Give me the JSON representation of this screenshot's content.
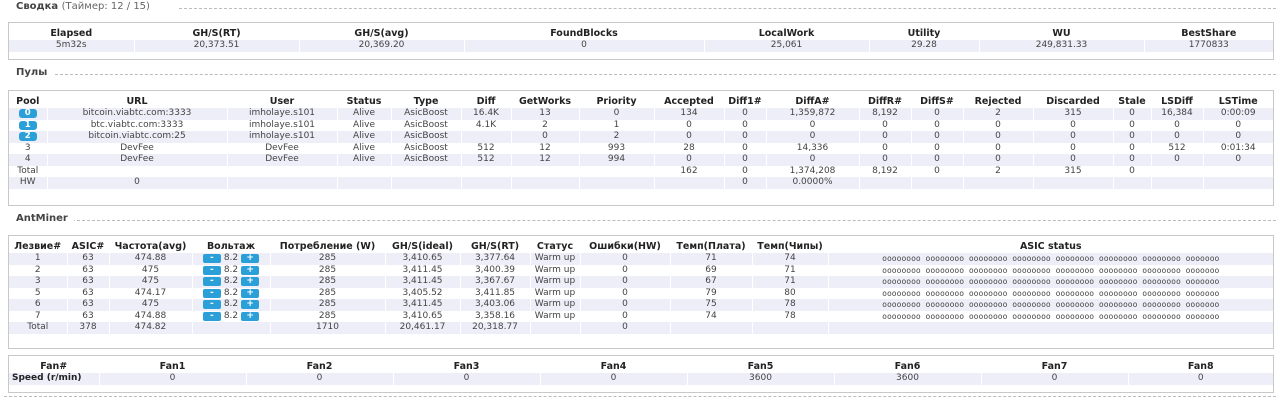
{
  "summary": {
    "title": "Сводка",
    "timer": "(Таймер: 12 / 15)",
    "headers": [
      "Elapsed",
      "GH/S(RT)",
      "GH/S(avg)",
      "FoundBlocks",
      "LocalWork",
      "Utility",
      "WU",
      "BestShare"
    ],
    "row": [
      "5m32s",
      "20,373.51",
      "20,369.20",
      "0",
      "25,061",
      "29.28",
      "249,831.33",
      "1770833"
    ]
  },
  "pools": {
    "title": "Пулы",
    "headers": [
      "Pool",
      "URL",
      "User",
      "Status",
      "Type",
      "Diff",
      "GetWorks",
      "Priority",
      "Accepted",
      "Diff1#",
      "DiffA#",
      "DiffR#",
      "DiffS#",
      "Rejected",
      "Discarded",
      "Stale",
      "LSDiff",
      "LSTime"
    ],
    "rows": [
      {
        "pool": "0",
        "cells": [
          "bitcoin.viabtc.com:3333",
          "imholaye.s101",
          "Alive",
          "AsicBoost",
          "16.4K",
          "13",
          "0",
          "134",
          "0",
          "1,359,872",
          "8,192",
          "0",
          "2",
          "315",
          "0",
          "16,384",
          "0:00:09"
        ]
      },
      {
        "pool": "1",
        "cells": [
          "btc.viabtc.com:3333",
          "imholaye.s101",
          "Alive",
          "AsicBoost",
          "4.1K",
          "2",
          "1",
          "0",
          "0",
          "0",
          "0",
          "0",
          "0",
          "0",
          "0",
          "0",
          "0"
        ]
      },
      {
        "pool": "2",
        "cells": [
          "bitcoin.viabtc.com:25",
          "imholaye.s101",
          "Alive",
          "AsicBoost",
          "",
          "0",
          "2",
          "0",
          "0",
          "0",
          "0",
          "0",
          "0",
          "0",
          "0",
          "0",
          "0"
        ]
      },
      {
        "pool": "3",
        "cells": [
          "DevFee",
          "DevFee",
          "Alive",
          "AsicBoost",
          "512",
          "12",
          "993",
          "28",
          "0",
          "14,336",
          "0",
          "0",
          "0",
          "0",
          "0",
          "512",
          "0:01:34"
        ]
      },
      {
        "pool": "4",
        "cells": [
          "DevFee",
          "DevFee",
          "Alive",
          "AsicBoost",
          "512",
          "12",
          "994",
          "0",
          "0",
          "0",
          "0",
          "0",
          "0",
          "0",
          "0",
          "0",
          "0"
        ]
      }
    ],
    "total_label": "Total",
    "total_cells": [
      "",
      "",
      "",
      "",
      "",
      "",
      "",
      "162",
      "0",
      "1,374,208",
      "8,192",
      "0",
      "2",
      "315",
      "0",
      "",
      ""
    ],
    "hw_label": "HW",
    "hw_cells": [
      "0",
      "",
      "",
      "",
      "",
      "",
      "",
      "",
      "0",
      "0.0000%",
      "",
      "",
      "",
      "",
      "",
      "",
      ""
    ]
  },
  "antminer": {
    "title": "AntMiner",
    "headers": [
      "Лезвие#",
      "ASIC#",
      "Частота(avg)",
      "Вольтаж",
      "Потребление (W)",
      "GH/S(ideal)",
      "GH/S(RT)",
      "Статус",
      "Ошибки(HW)",
      "Темп(Плата)",
      "Темп(Чипы)",
      "ASIC status"
    ],
    "minus_label": "-",
    "plus_label": "+",
    "asic_status": "oooooooo oooooooo oooooooo oooooooo oooooooo oooooooo oooooooo ooooooo",
    "rows": [
      {
        "blade": "1",
        "asic": "63",
        "freq": "474.88",
        "volt": "8.2",
        "power": "285",
        "ideal": "3,410.65",
        "rt": "3,377.64",
        "status": "Warm up",
        "hw": "0",
        "tboard": "71",
        "tchip": "74"
      },
      {
        "blade": "2",
        "asic": "63",
        "freq": "475",
        "volt": "8.2",
        "power": "285",
        "ideal": "3,411.45",
        "rt": "3,400.39",
        "status": "Warm up",
        "hw": "0",
        "tboard": "69",
        "tchip": "71"
      },
      {
        "blade": "3",
        "asic": "63",
        "freq": "475",
        "volt": "8.2",
        "power": "285",
        "ideal": "3,411.45",
        "rt": "3,367.67",
        "status": "Warm up",
        "hw": "0",
        "tboard": "67",
        "tchip": "71"
      },
      {
        "blade": "5",
        "asic": "63",
        "freq": "474.17",
        "volt": "8.2",
        "power": "285",
        "ideal": "3,405.52",
        "rt": "3,411.85",
        "status": "Warm up",
        "hw": "0",
        "tboard": "79",
        "tchip": "80"
      },
      {
        "blade": "6",
        "asic": "63",
        "freq": "475",
        "volt": "8.2",
        "power": "285",
        "ideal": "3,411.45",
        "rt": "3,403.06",
        "status": "Warm up",
        "hw": "0",
        "tboard": "75",
        "tchip": "78"
      },
      {
        "blade": "7",
        "asic": "63",
        "freq": "474.88",
        "volt": "8.2",
        "power": "285",
        "ideal": "3,410.65",
        "rt": "3,358.16",
        "status": "Warm up",
        "hw": "0",
        "tboard": "74",
        "tchip": "78"
      }
    ],
    "total": {
      "blade": "Total",
      "asic": "378",
      "freq": "474.82",
      "volt": "",
      "power": "1710",
      "ideal": "20,461.17",
      "rt": "20,318.77",
      "status": "",
      "hw": "0",
      "tboard": "",
      "tchip": ""
    }
  },
  "fans": {
    "headers": [
      "Fan#",
      "Fan1",
      "Fan2",
      "Fan3",
      "Fan4",
      "Fan5",
      "Fan6",
      "Fan7",
      "Fan8"
    ],
    "speed_label": "Speed (r/min)",
    "speeds": [
      "0",
      "0",
      "0",
      "0",
      "3600",
      "3600",
      "0",
      "0"
    ]
  }
}
